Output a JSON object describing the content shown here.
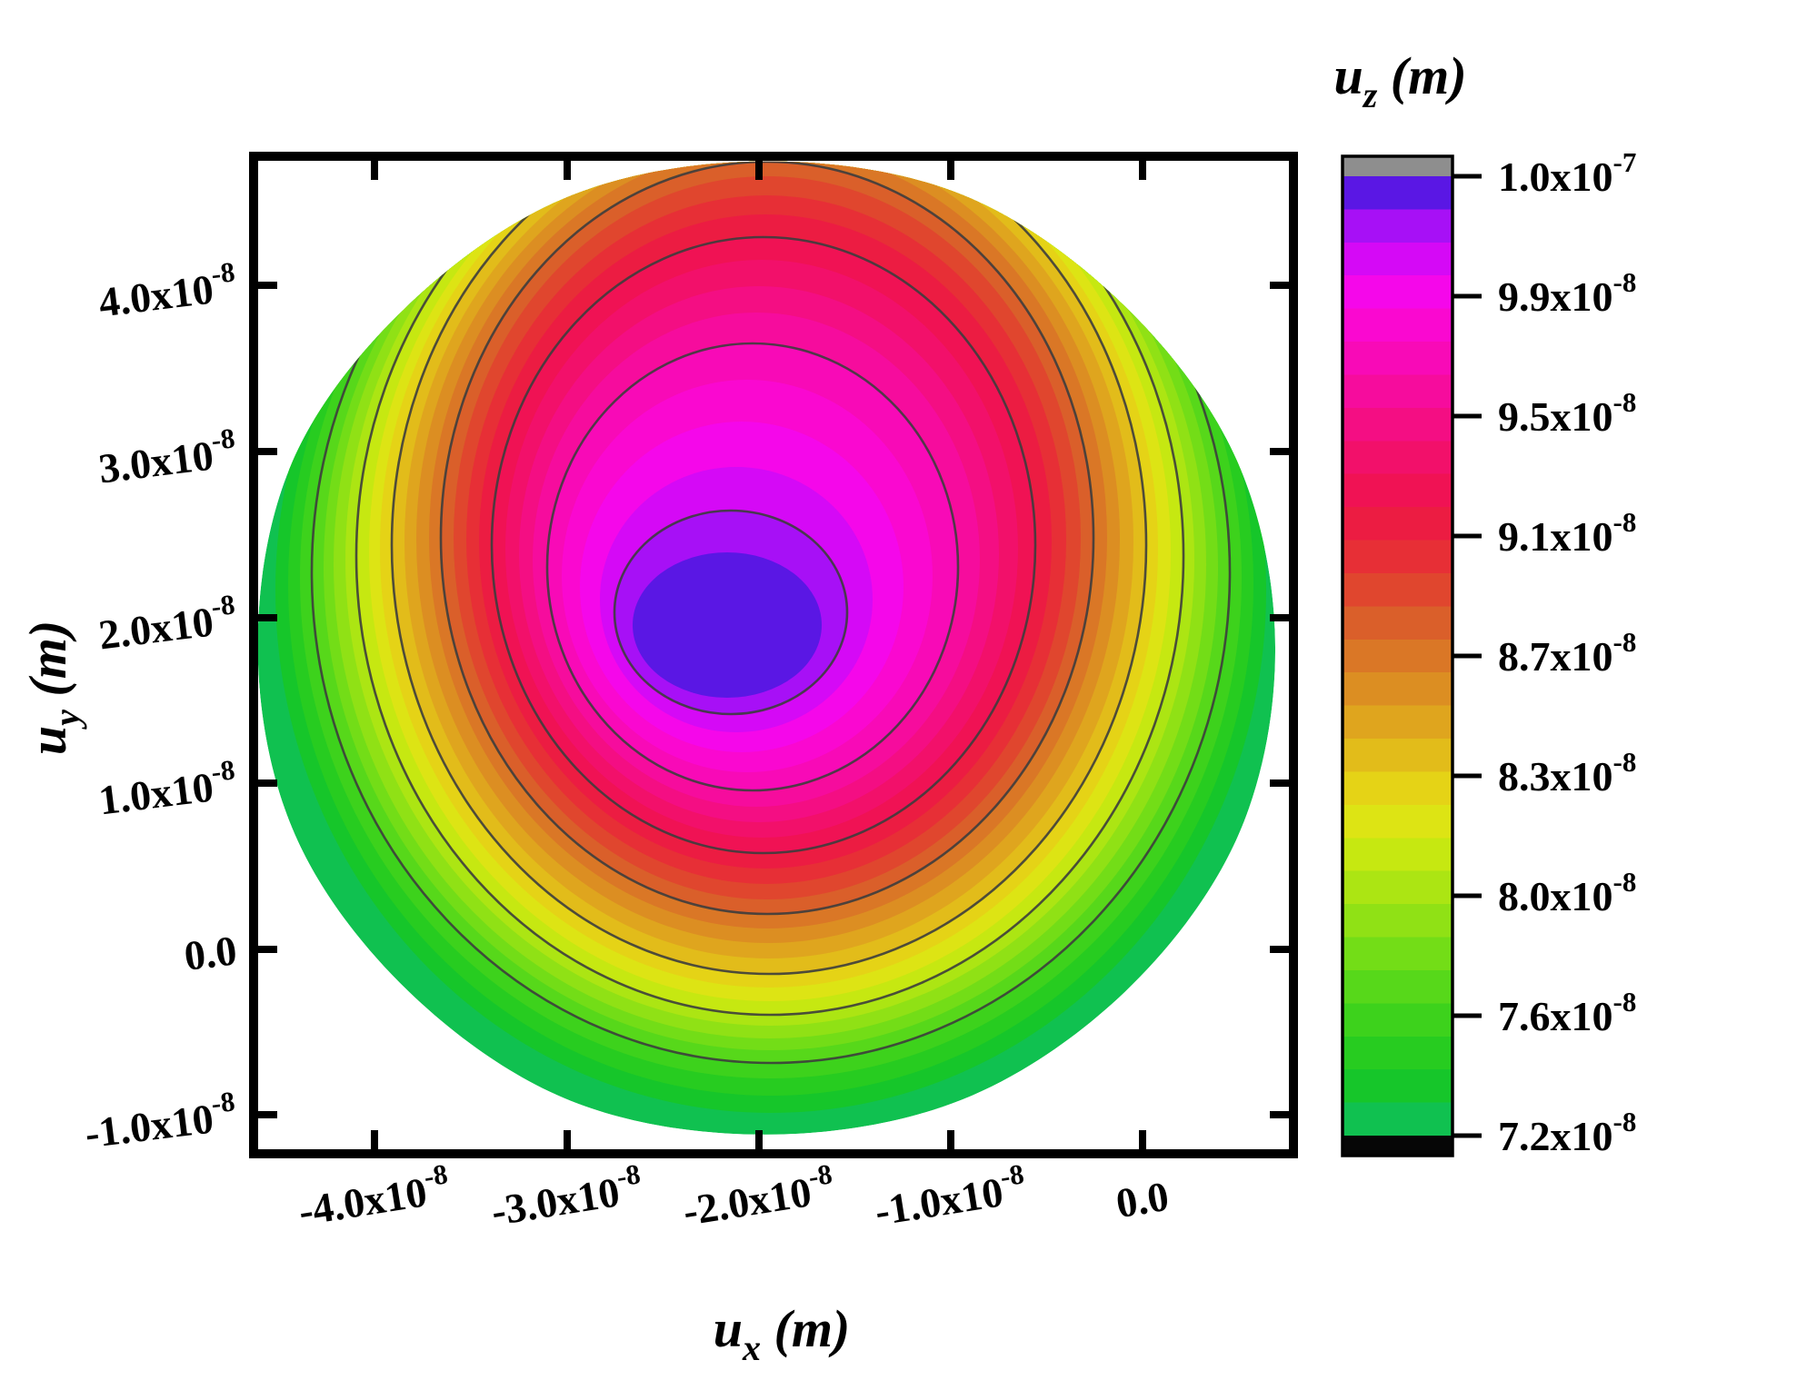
{
  "colors": {
    "background": "#ffffff",
    "frame": "#000000",
    "contour_line": "#3d3d3d",
    "over_cap": "#8e8e8e",
    "under_cap": "#060606"
  },
  "x_axis": {
    "title": {
      "base": "u",
      "sub": "x",
      "unit": "(m)"
    },
    "ticks": [
      {
        "m": "-4.0x10",
        "e": "-8"
      },
      {
        "m": "-3.0x10",
        "e": "-8"
      },
      {
        "m": "-2.0x10",
        "e": "-8"
      },
      {
        "m": "-1.0x10",
        "e": "-8"
      },
      {
        "m": "0.0",
        "e": ""
      }
    ]
  },
  "y_axis": {
    "title": {
      "base": "u",
      "sub": "y",
      "unit": "(m)"
    },
    "ticks": [
      {
        "m": "4.0x10",
        "e": "-8"
      },
      {
        "m": "3.0x10",
        "e": "-8"
      },
      {
        "m": "2.0x10",
        "e": "-8"
      },
      {
        "m": "1.0x10",
        "e": "-8"
      },
      {
        "m": "0.0",
        "e": ""
      },
      {
        "m": "-1.0x10",
        "e": "-8"
      }
    ]
  },
  "colorbar": {
    "title": {
      "base": "u",
      "sub": "z",
      "unit": "(m)"
    },
    "ticks": [
      {
        "m": "1.0x10",
        "e": "-7"
      },
      {
        "m": "9.9x10",
        "e": "-8"
      },
      {
        "m": "9.5x10",
        "e": "-8"
      },
      {
        "m": "9.1x10",
        "e": "-8"
      },
      {
        "m": "8.7x10",
        "e": "-8"
      },
      {
        "m": "8.3x10",
        "e": "-8"
      },
      {
        "m": "8.0x10",
        "e": "-8"
      },
      {
        "m": "7.6x10",
        "e": "-8"
      },
      {
        "m": "7.2x10",
        "e": "-8"
      }
    ]
  },
  "chart_data": {
    "type": "heatmap",
    "subtype": "filled contour map with contour lines",
    "title": "",
    "xlabel": "u_x (m)",
    "ylabel": "u_y (m)",
    "zlabel": "u_z (m)",
    "x_tick_values": [
      -4e-08,
      -3e-08,
      -2e-08,
      -1e-08,
      0.0
    ],
    "y_tick_values": [
      4e-08,
      3e-08,
      2e-08,
      1e-08,
      0.0,
      -1e-08
    ],
    "x_range": [
      -4.63e-08,
      7.9e-09
    ],
    "y_range": [
      -1.33e-08,
      4.78e-08
    ],
    "z_tick_values": [
      1e-07,
      9.9e-08,
      9.5e-08,
      9.1e-08,
      8.7e-08,
      8.3e-08,
      8e-08,
      7.6e-08,
      7.2e-08
    ],
    "z_range": [
      7.2e-08,
      1e-07
    ],
    "grid": false,
    "legend_position": "colorbar-right",
    "peak": {
      "ux": -2.16e-08,
      "uy": 1.95e-08,
      "uz": 1e-07
    },
    "domain_boundary": {
      "shape": "irregular near-circle",
      "center_ux": -1.93e-08,
      "center_uy": 1.58e-08,
      "radius_ux": 2.65e-08,
      "radius_uy": 2.94e-08,
      "boundary_value_min": 7.2e-08,
      "boundary_value_top_edge": 8.6e-08
    },
    "contour_interval": 1e-09,
    "contour_line_values": [
      7.6e-08,
      8e-08,
      8.3e-08,
      8.7e-08,
      9.1e-08,
      9.5e-08,
      9.9e-08
    ],
    "levels": [
      {
        "value": 7.2e-08,
        "color": "#10c150"
      },
      {
        "value": 7.3e-08,
        "color": "#16c62a"
      },
      {
        "value": 7.4e-08,
        "color": "#27cc20"
      },
      {
        "value": 7.5e-08,
        "color": "#3dd21c"
      },
      {
        "value": 7.6e-08,
        "color": "#57d81a"
      },
      {
        "value": 7.7e-08,
        "color": "#73dd17"
      },
      {
        "value": 7.8e-08,
        "color": "#90e115"
      },
      {
        "value": 7.9e-08,
        "color": "#ace513"
      },
      {
        "value": 8e-08,
        "color": "#c6e811"
      },
      {
        "value": 8.1e-08,
        "color": "#dde414"
      },
      {
        "value": 8.2e-08,
        "color": "#e5d316"
      },
      {
        "value": 8.3e-08,
        "color": "#e2bc1a"
      },
      {
        "value": 8.4e-08,
        "color": "#dfa51e"
      },
      {
        "value": 8.5e-08,
        "color": "#dc8e22"
      },
      {
        "value": 8.6e-08,
        "color": "#da7726"
      },
      {
        "value": 8.7e-08,
        "color": "#da5f2a"
      },
      {
        "value": 8.8e-08,
        "color": "#e0462e"
      },
      {
        "value": 8.9e-08,
        "color": "#e72f36"
      },
      {
        "value": 9e-08,
        "color": "#ec1c42"
      },
      {
        "value": 9.1e-08,
        "color": "#f01254"
      },
      {
        "value": 9.2e-08,
        "color": "#f2106a"
      },
      {
        "value": 9.3e-08,
        "color": "#f40e83"
      },
      {
        "value": 9.4e-08,
        "color": "#f60c9d"
      },
      {
        "value": 9.5e-08,
        "color": "#f80ab7"
      },
      {
        "value": 9.6e-08,
        "color": "#fa08d0"
      },
      {
        "value": 9.7e-08,
        "color": "#f507ea"
      },
      {
        "value": 9.8e-08,
        "color": "#d509f6"
      },
      {
        "value": 9.9e-08,
        "color": "#a710f6"
      },
      {
        "value": 1e-07,
        "color": "#5a17e4"
      }
    ]
  }
}
